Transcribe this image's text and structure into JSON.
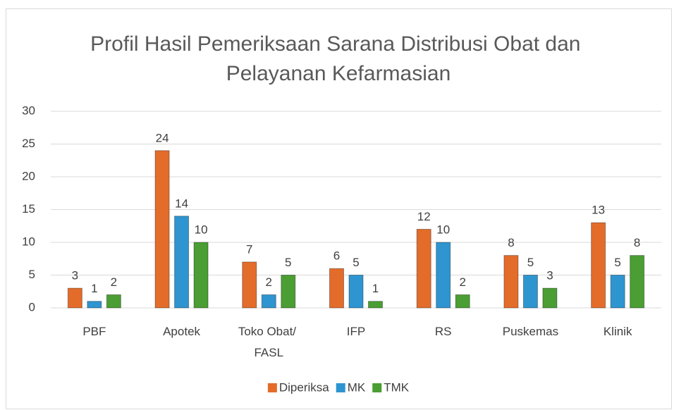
{
  "chart_data": {
    "type": "bar",
    "title": "Profil Hasil Pemeriksaan Sarana Distribusi Obat dan Pelayanan Kefarmasian",
    "categories": [
      "PBF",
      "Apotek",
      "Toko Obat/ FASL",
      "IFP",
      "RS",
      "Puskemas",
      "Klinik"
    ],
    "series": [
      {
        "name": "Diperiksa",
        "color": "#E46C2A",
        "values": [
          3,
          24,
          7,
          6,
          12,
          8,
          13
        ]
      },
      {
        "name": "MK",
        "color": "#2E95D0",
        "values": [
          1,
          14,
          2,
          5,
          10,
          5,
          5
        ]
      },
      {
        "name": "TMK",
        "color": "#4A9E33",
        "values": [
          2,
          10,
          5,
          1,
          2,
          3,
          8
        ]
      }
    ],
    "ylim": [
      0,
      30
    ],
    "yticks": [
      0,
      5,
      10,
      15,
      20,
      25,
      30
    ],
    "grid": true,
    "legend": "bottom",
    "data_labels": true
  }
}
